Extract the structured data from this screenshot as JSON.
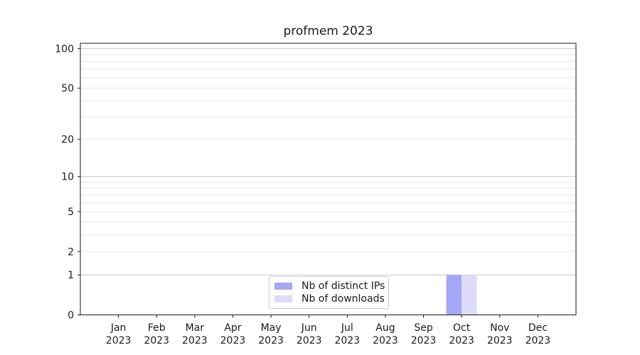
{
  "figure": {
    "background": "#ffffff"
  },
  "chart_data": {
    "type": "bar",
    "title": "profmem 2023",
    "categories": [
      {
        "month": "Jan",
        "year": "2023"
      },
      {
        "month": "Feb",
        "year": "2023"
      },
      {
        "month": "Mar",
        "year": "2023"
      },
      {
        "month": "Apr",
        "year": "2023"
      },
      {
        "month": "May",
        "year": "2023"
      },
      {
        "month": "Jun",
        "year": "2023"
      },
      {
        "month": "Jul",
        "year": "2023"
      },
      {
        "month": "Aug",
        "year": "2023"
      },
      {
        "month": "Sep",
        "year": "2023"
      },
      {
        "month": "Oct",
        "year": "2023"
      },
      {
        "month": "Nov",
        "year": "2023"
      },
      {
        "month": "Dec",
        "year": "2023"
      }
    ],
    "series": [
      {
        "name": "Nb of distinct IPs",
        "color": "#a7a7f7",
        "values": [
          0,
          0,
          0,
          0,
          0,
          0,
          0,
          0,
          0,
          1,
          0,
          0
        ]
      },
      {
        "name": "Nb of downloads",
        "color": "#dcdcf9",
        "values": [
          0,
          0,
          0,
          0,
          0,
          0,
          0,
          0,
          0,
          1,
          0,
          0
        ]
      }
    ],
    "xlabel": "",
    "ylabel": "",
    "yscale": "log1p",
    "ylim": [
      0,
      110
    ],
    "y_major_ticks": [
      0,
      1,
      2,
      5,
      10,
      20,
      50,
      100
    ],
    "y_gridlines_major": [
      1,
      10,
      100
    ],
    "y_gridlines_minor": [
      2,
      3,
      4,
      5,
      6,
      7,
      8,
      9,
      20,
      30,
      40,
      50,
      60,
      70,
      80,
      90
    ],
    "grid": true,
    "legend_position": "lower-center",
    "colors": {
      "text": "#1a1a1a",
      "spine": "#1a1a1a",
      "tick": "#1a1a1a",
      "grid_major": "#c6c6c6",
      "grid_minor": "#e9e9e9",
      "legend_border": "#cbcbcb",
      "plot_background": "#ffffff"
    }
  }
}
